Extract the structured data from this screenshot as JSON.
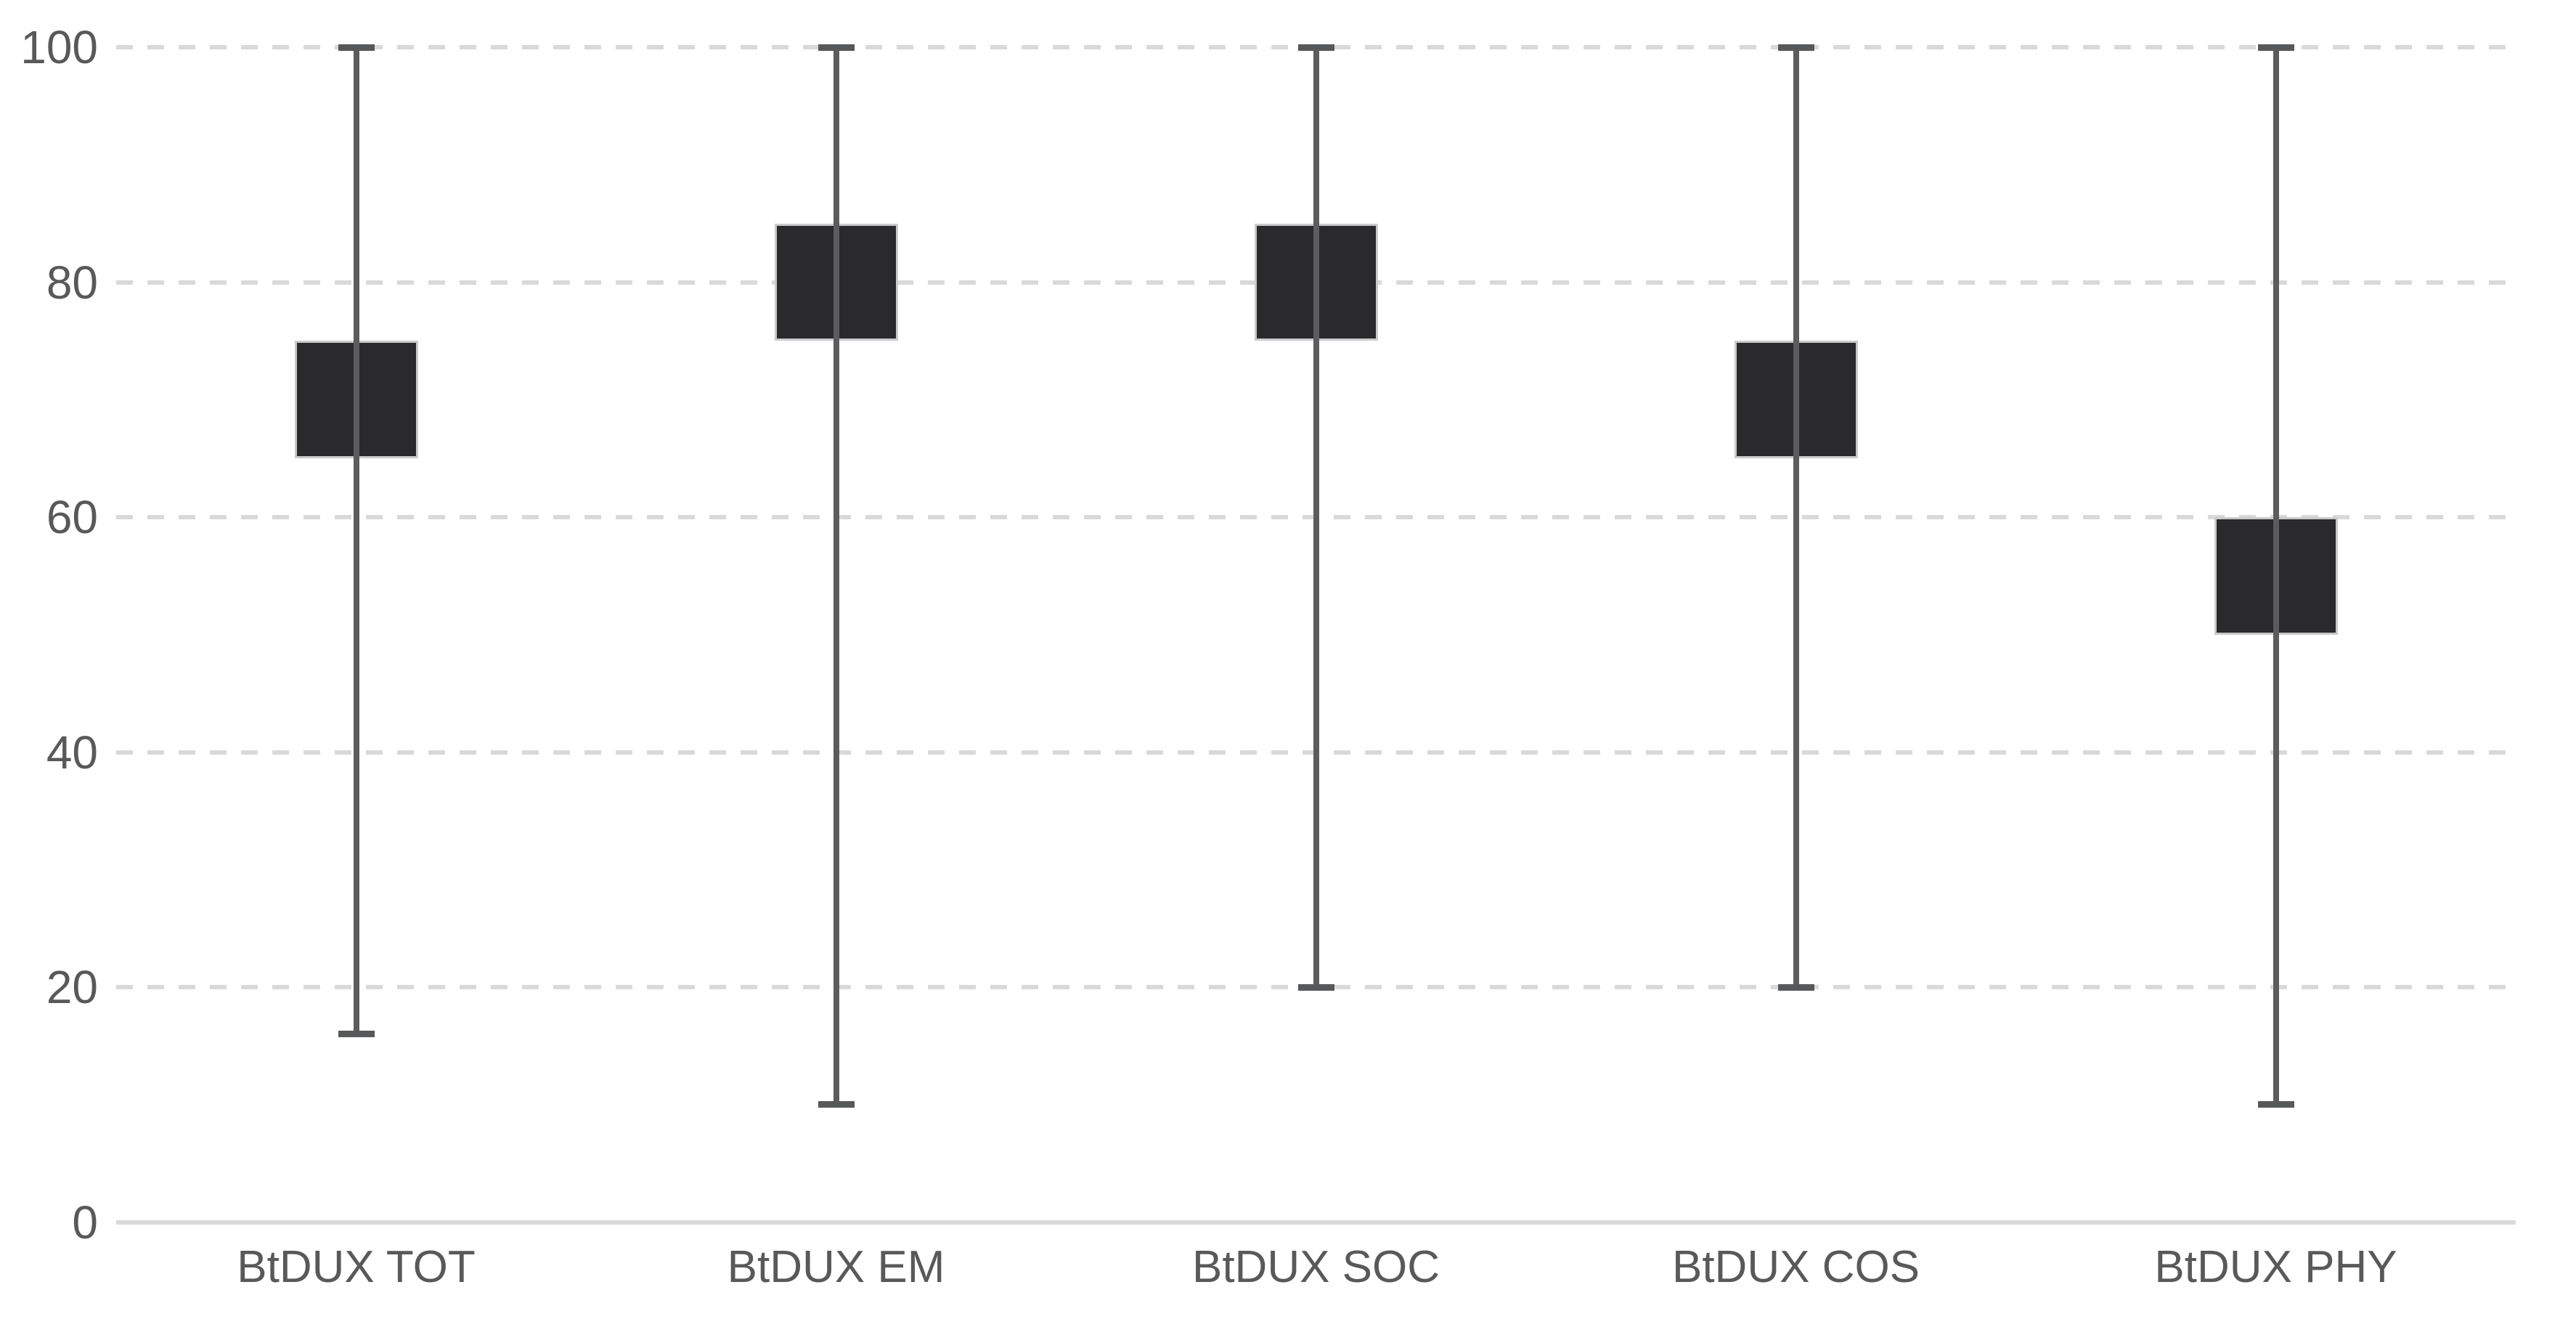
{
  "chart_data": {
    "type": "box",
    "title": "",
    "categories": [
      "BtDUX TOT",
      "BtDUX EM",
      "BtDUX SOC",
      "BtDUX COS",
      "BtDUX PHY"
    ],
    "series": [
      {
        "name": "BtDUX TOT",
        "box_low": 65,
        "box_high": 75,
        "whisker_low": 16,
        "whisker_high": 100
      },
      {
        "name": "BtDUX EM",
        "box_low": 75,
        "box_high": 85,
        "whisker_low": 10,
        "whisker_high": 100
      },
      {
        "name": "BtDUX SOC",
        "box_low": 75,
        "box_high": 85,
        "whisker_low": 20,
        "whisker_high": 100
      },
      {
        "name": "BtDUX COS",
        "box_low": 65,
        "box_high": 75,
        "whisker_low": 20,
        "whisker_high": 100
      },
      {
        "name": "BtDUX PHY",
        "box_low": 50,
        "box_high": 60,
        "whisker_low": 10,
        "whisker_high": 100
      }
    ],
    "ylim": [
      0,
      100
    ],
    "yticks": [
      0,
      20,
      40,
      60,
      80,
      100
    ],
    "grid": "horizontal-dashed",
    "legend": "none",
    "xlabel": "",
    "ylabel": "",
    "colors": {
      "box_fill": "#2a2a2c",
      "box_border": "#c9cacb",
      "whisker": "#5a5c5d",
      "gridline": "#d9d9d9",
      "axis_line": "#d9d9d9",
      "label_text": "#595959",
      "background": "#ffffff"
    }
  }
}
